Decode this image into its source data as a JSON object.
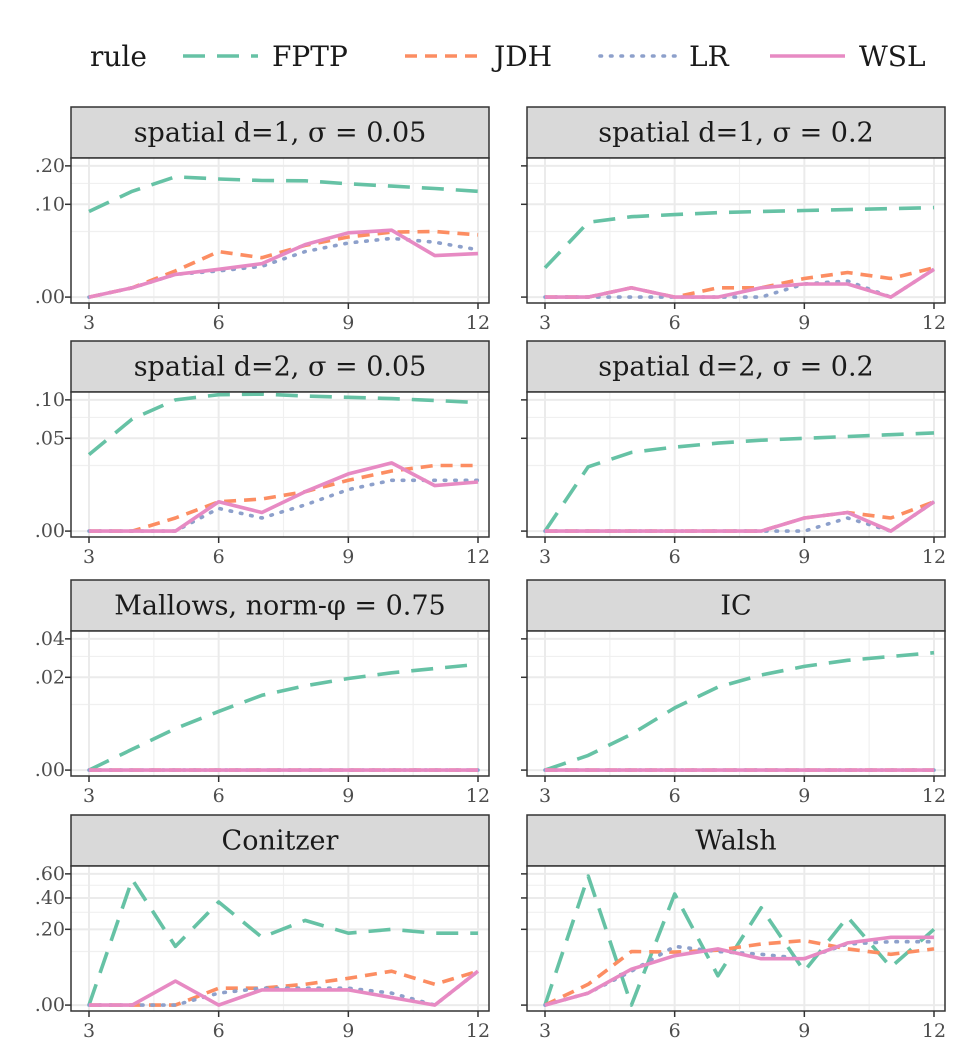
{
  "legend": {
    "title": "rule",
    "position": "top",
    "entries": [
      {
        "name": "FPTP",
        "color": "#66C2A5",
        "dash": "dashed"
      },
      {
        "name": "JDH",
        "color": "#FC8D62",
        "dash": "short-dashed"
      },
      {
        "name": "LR",
        "color": "#8DA0CB",
        "dash": "dotted"
      },
      {
        "name": "WSL",
        "color": "#E78AC3",
        "dash": "solid"
      }
    ]
  },
  "chart_data": [
    {
      "type": "line",
      "title": "spatial d=1, σ = 0.05",
      "x": [
        3,
        4,
        5,
        6,
        7,
        8,
        9,
        10,
        11,
        12
      ],
      "xticks": [
        "3",
        "6",
        "9",
        "12"
      ],
      "xlim": [
        3,
        12
      ],
      "yticks": [
        {
          "value": 0.0,
          "label": ".00"
        },
        {
          "value": 0.1,
          "label": ".10"
        },
        {
          "value": 0.2,
          "label": ".20"
        }
      ],
      "ymajor_values": [
        0.0,
        0.1,
        0.2
      ],
      "series": [
        {
          "name": "FPTP",
          "values": [
            0.085,
            0.13,
            0.168,
            0.162,
            0.158,
            0.157,
            0.149,
            0.143,
            0.137,
            0.13
          ]
        },
        {
          "name": "JDH",
          "values": [
            0.0,
            0.001,
            0.008,
            0.024,
            0.018,
            0.031,
            0.042,
            0.049,
            0.05,
            0.045
          ]
        },
        {
          "name": "LR",
          "values": [
            0.0,
            0.001,
            0.006,
            0.008,
            0.011,
            0.024,
            0.034,
            0.04,
            0.035,
            0.026
          ]
        },
        {
          "name": "WSL",
          "values": [
            0.0,
            0.001,
            0.006,
            0.009,
            0.013,
            0.032,
            0.048,
            0.052,
            0.02,
            0.022
          ]
        }
      ]
    },
    {
      "type": "line",
      "title": "spatial d=1, σ = 0.2",
      "x": [
        3,
        4,
        5,
        6,
        7,
        8,
        9,
        10,
        11,
        12
      ],
      "xticks": [
        "3",
        "6",
        "9",
        "12"
      ],
      "xlim": [
        3,
        12
      ],
      "yticks": [
        {
          "value": 0.0,
          "label": ""
        },
        {
          "value": 0.1,
          "label": ""
        },
        {
          "value": 0.2,
          "label": ""
        }
      ],
      "ymajor_values": [
        0.0,
        0.1,
        0.2
      ],
      "series": [
        {
          "name": "FPTP",
          "values": [
            0.01,
            0.065,
            0.075,
            0.079,
            0.083,
            0.085,
            0.087,
            0.089,
            0.091,
            0.093
          ]
        },
        {
          "name": "JDH",
          "values": [
            0.0,
            0.0,
            0.001,
            0.0,
            0.001,
            0.001,
            0.004,
            0.007,
            0.004,
            0.01
          ]
        },
        {
          "name": "LR",
          "values": [
            0.0,
            0.0,
            0.0,
            0.0,
            0.0,
            0.0,
            0.002,
            0.003,
            0.0,
            0.009
          ]
        },
        {
          "name": "WSL",
          "values": [
            0.0,
            0.0,
            0.001,
            0.0,
            0.0,
            0.001,
            0.002,
            0.002,
            0.0,
            0.009
          ]
        }
      ]
    },
    {
      "type": "line",
      "title": "spatial d=2, σ = 0.05",
      "x": [
        3,
        4,
        5,
        6,
        7,
        8,
        9,
        10,
        11,
        12
      ],
      "xticks": [
        "3",
        "6",
        "9",
        "12"
      ],
      "xlim": [
        3,
        12
      ],
      "yticks": [
        {
          "value": 0.0,
          "label": ".00"
        },
        {
          "value": 0.05,
          "label": ".05"
        },
        {
          "value": 0.1,
          "label": ".10"
        }
      ],
      "ymajor_values": [
        0.0,
        0.05,
        0.1
      ],
      "series": [
        {
          "name": "FPTP",
          "values": [
            0.034,
            0.073,
            0.1,
            0.108,
            0.109,
            0.106,
            0.104,
            0.102,
            0.099,
            0.096
          ]
        },
        {
          "name": "JDH",
          "values": [
            0.0,
            0.0,
            0.001,
            0.005,
            0.006,
            0.009,
            0.015,
            0.021,
            0.025,
            0.025
          ]
        },
        {
          "name": "LR",
          "values": [
            0.0,
            0.0,
            0.0,
            0.003,
            0.001,
            0.004,
            0.01,
            0.015,
            0.015,
            0.015
          ]
        },
        {
          "name": "WSL",
          "values": [
            0.0,
            0.0,
            0.0,
            0.005,
            0.002,
            0.009,
            0.019,
            0.027,
            0.012,
            0.014
          ]
        }
      ]
    },
    {
      "type": "line",
      "title": "spatial d=2, σ = 0.2",
      "x": [
        3,
        4,
        5,
        6,
        7,
        8,
        9,
        10,
        11,
        12
      ],
      "xticks": [
        "3",
        "6",
        "9",
        "12"
      ],
      "xlim": [
        3,
        12
      ],
      "yticks": [
        {
          "value": 0.0,
          "label": ""
        },
        {
          "value": 0.05,
          "label": ""
        },
        {
          "value": 0.1,
          "label": ""
        }
      ],
      "ymajor_values": [
        0.0,
        0.05,
        0.1
      ],
      "series": [
        {
          "name": "FPTP",
          "values": [
            0.0,
            0.024,
            0.036,
            0.041,
            0.045,
            0.048,
            0.05,
            0.052,
            0.054,
            0.056
          ]
        },
        {
          "name": "JDH",
          "values": [
            0.0,
            0.0,
            0.0,
            0.0,
            0.0,
            0.0,
            0.001,
            0.002,
            0.001,
            0.005
          ]
        },
        {
          "name": "LR",
          "values": [
            0.0,
            0.0,
            0.0,
            0.0,
            0.0,
            0.0,
            0.0,
            0.001,
            0.0,
            0.005
          ]
        },
        {
          "name": "WSL",
          "values": [
            0.0,
            0.0,
            0.0,
            0.0,
            0.0,
            0.0,
            0.001,
            0.002,
            0.0,
            0.005
          ]
        }
      ]
    },
    {
      "type": "line",
      "title": "Mallows, norm-φ = 0.75",
      "x": [
        3,
        4,
        5,
        6,
        7,
        8,
        9,
        10,
        11,
        12
      ],
      "xticks": [
        "3",
        "6",
        "9",
        "12"
      ],
      "xlim": [
        3,
        12
      ],
      "yticks": [
        {
          "value": 0.0,
          "label": ".00"
        },
        {
          "value": 0.02,
          "label": ".02"
        },
        {
          "value": 0.04,
          "label": ".04"
        }
      ],
      "ymajor_values": [
        0.0,
        0.02,
        0.04
      ],
      "series": [
        {
          "name": "FPTP",
          "values": [
            0.0,
            0.001,
            0.004,
            0.008,
            0.013,
            0.0165,
            0.0195,
            0.022,
            0.024,
            0.026
          ]
        },
        {
          "name": "JDH",
          "values": [
            0,
            0,
            0,
            0,
            0,
            0,
            0,
            0,
            0,
            0
          ]
        },
        {
          "name": "LR",
          "values": [
            0,
            0,
            0,
            0,
            0,
            0,
            0,
            0,
            0,
            0
          ]
        },
        {
          "name": "WSL",
          "values": [
            0,
            0,
            0,
            0,
            0,
            0,
            0,
            0,
            0,
            0
          ]
        }
      ]
    },
    {
      "type": "line",
      "title": "IC",
      "x": [
        3,
        4,
        5,
        6,
        7,
        8,
        9,
        10,
        11,
        12
      ],
      "xticks": [
        "3",
        "6",
        "9",
        "12"
      ],
      "xlim": [
        3,
        12
      ],
      "yticks": [
        {
          "value": 0.0,
          "label": ""
        },
        {
          "value": 0.02,
          "label": ""
        },
        {
          "value": 0.04,
          "label": ""
        }
      ],
      "ymajor_values": [
        0.0,
        0.02,
        0.04
      ],
      "series": [
        {
          "name": "FPTP",
          "values": [
            0.0,
            0.0005,
            0.003,
            0.009,
            0.016,
            0.021,
            0.025,
            0.028,
            0.03,
            0.032
          ]
        },
        {
          "name": "JDH",
          "values": [
            0,
            0,
            0,
            0,
            0,
            0,
            0,
            0,
            0,
            0
          ]
        },
        {
          "name": "LR",
          "values": [
            0,
            0,
            0,
            0,
            0,
            0,
            0,
            0,
            0,
            0
          ]
        },
        {
          "name": "WSL",
          "values": [
            0,
            0,
            0,
            0,
            0,
            0,
            0,
            0,
            0,
            0
          ]
        }
      ]
    },
    {
      "type": "line",
      "title": "Conitzer",
      "x": [
        3,
        4,
        5,
        6,
        7,
        8,
        9,
        10,
        11,
        12
      ],
      "xticks": [
        "3",
        "6",
        "9",
        "12"
      ],
      "xlim": [
        3,
        12
      ],
      "yticks": [
        {
          "value": 0.0,
          "label": ".00"
        },
        {
          "value": 0.2,
          "label": ".20"
        },
        {
          "value": 0.4,
          "label": ".40"
        },
        {
          "value": 0.6,
          "label": ".60"
        }
      ],
      "ymajor_values": [
        0.0,
        0.2,
        0.4,
        0.6
      ],
      "series": [
        {
          "name": "FPTP",
          "values": [
            0.0,
            0.55,
            0.12,
            0.37,
            0.16,
            0.25,
            0.18,
            0.2,
            0.18,
            0.18
          ]
        },
        {
          "name": "JDH",
          "values": [
            0.0,
            0.0,
            0.0,
            0.01,
            0.01,
            0.015,
            0.025,
            0.04,
            0.015,
            0.04
          ]
        },
        {
          "name": "LR",
          "values": [
            0.0,
            0.0,
            0.0,
            0.005,
            0.01,
            0.01,
            0.01,
            0.005,
            0.0,
            0.04
          ]
        },
        {
          "name": "WSL",
          "values": [
            0.0,
            0.0,
            0.02,
            0.0,
            0.008,
            0.008,
            0.008,
            0.002,
            0.0,
            0.04
          ]
        }
      ]
    },
    {
      "type": "line",
      "title": "Walsh",
      "x": [
        3,
        4,
        5,
        6,
        7,
        8,
        9,
        10,
        11,
        12
      ],
      "xticks": [
        "3",
        "6",
        "9",
        "12"
      ],
      "xlim": [
        3,
        12
      ],
      "yticks": [
        {
          "value": 0.0,
          "label": ""
        },
        {
          "value": 0.2,
          "label": ""
        },
        {
          "value": 0.4,
          "label": ""
        },
        {
          "value": 0.6,
          "label": ""
        }
      ],
      "ymajor_values": [
        0.0,
        0.2,
        0.4,
        0.6
      ],
      "series": [
        {
          "name": "FPTP",
          "values": [
            0.0,
            0.58,
            0.0,
            0.43,
            0.03,
            0.33,
            0.04,
            0.27,
            0.05,
            0.2
          ]
        },
        {
          "name": "JDH",
          "values": [
            0.0,
            0.015,
            0.1,
            0.098,
            0.105,
            0.13,
            0.145,
            0.11,
            0.09,
            0.11
          ]
        },
        {
          "name": "LR",
          "values": [
            0.0,
            0.005,
            0.04,
            0.12,
            0.1,
            0.09,
            0.075,
            0.13,
            0.14,
            0.14
          ]
        },
        {
          "name": "WSL",
          "values": [
            0.0,
            0.005,
            0.045,
            0.085,
            0.11,
            0.075,
            0.075,
            0.135,
            0.16,
            0.16
          ]
        }
      ]
    }
  ]
}
